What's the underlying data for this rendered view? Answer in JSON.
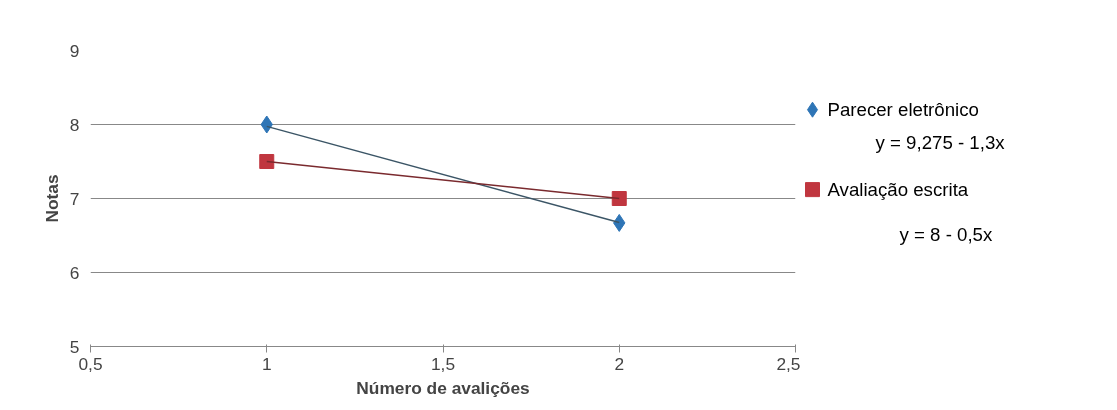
{
  "chart_data": {
    "type": "scatter",
    "xlabel": "Número de avalições",
    "ylabel": "Notas",
    "x": [
      1,
      2
    ],
    "series": [
      {
        "name": "Parecer eletrônico",
        "color": "#2e75b6",
        "values": [
          8,
          6.67
        ],
        "marker": "diamond"
      },
      {
        "name": "Avaliação escrita",
        "color": "#c0363f",
        "values": [
          7.5,
          7
        ],
        "marker": "square"
      },
      {
        "type": "line",
        "color": "#3b5566",
        "values": [
          7.975,
          6.675
        ]
      },
      {
        "type": "line",
        "color": "#7a2a2e",
        "values": [
          7.5,
          7
        ]
      }
    ],
    "annotations": [
      "y  = 9,275  - 1,3x",
      "y  = 8  - 0,5x"
    ],
    "xlim": [
      0.5,
      2.5
    ],
    "xticks": [
      {
        "value": 0.5,
        "label": "0,5"
      },
      1,
      {
        "value": 1.5,
        "label": "1,5"
      },
      2,
      {
        "value": 2.5,
        "label": "2,5"
      }
    ],
    "ylim": [
      5,
      9
    ],
    "yticks": [
      5,
      6,
      7,
      8,
      9
    ],
    "grid": "y",
    "legend": "right",
    "line_style": "solid"
  }
}
